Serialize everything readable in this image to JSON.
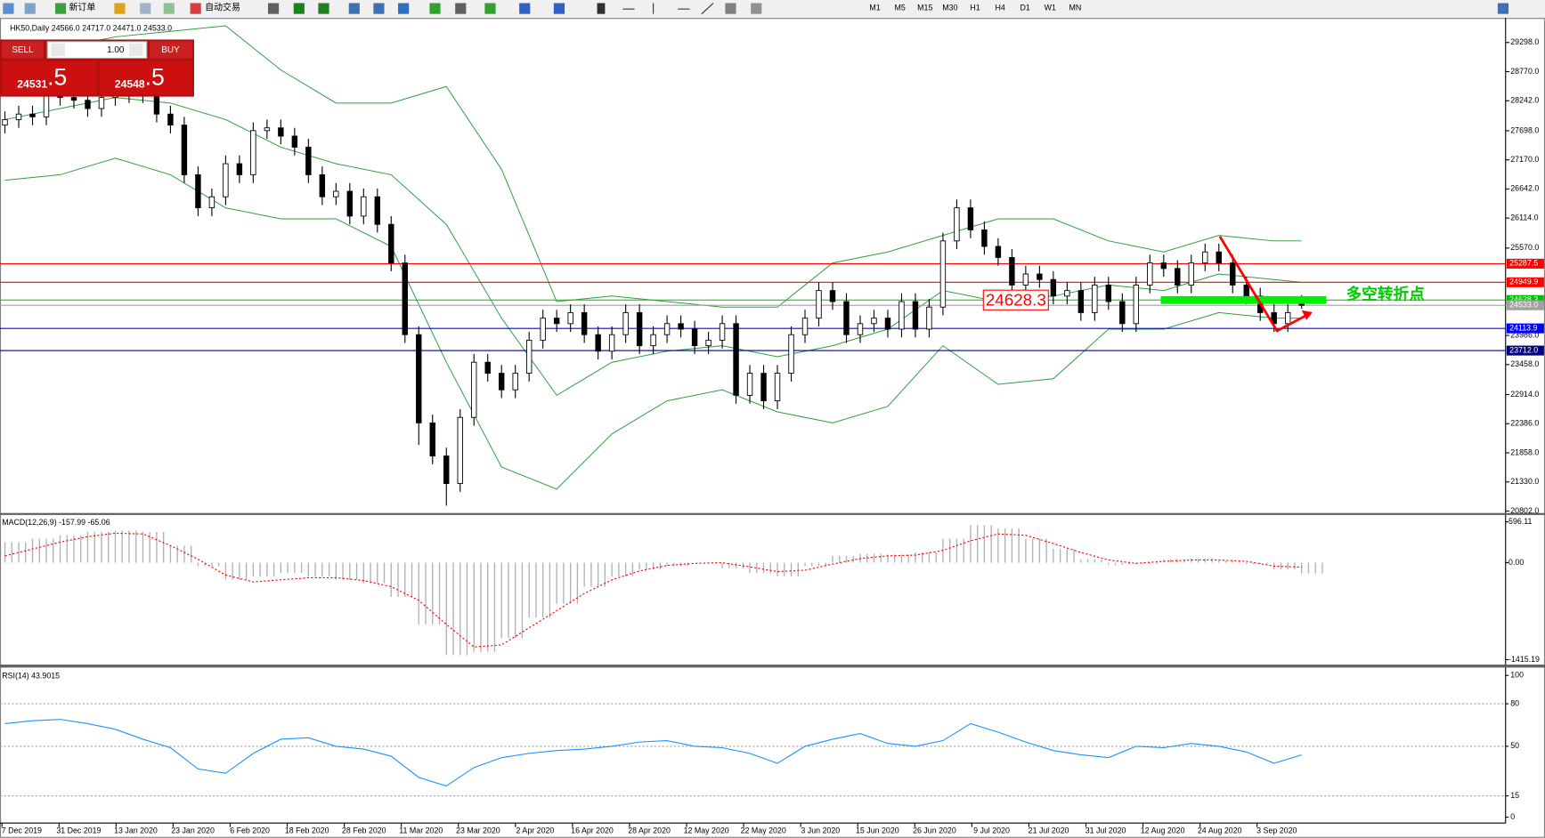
{
  "toolbar": {
    "new_order": "新订单",
    "auto_trade": "自动交易",
    "timeframes": [
      "M1",
      "M5",
      "M15",
      "M30",
      "H1",
      "H4",
      "D1",
      "W1",
      "MN"
    ]
  },
  "trade_panel": {
    "sell": "SELL",
    "buy": "BUY",
    "lots": "1.00",
    "sell_big": "24531",
    "sell_small": ".5",
    "buy_big": "24548",
    "buy_small": ".5"
  },
  "chart_data": [
    {
      "type": "candlestick",
      "title": "HK50,Daily  24566.0 24717.0 24471.0 24533.0",
      "open": [
        27800,
        27900,
        28000,
        27950,
        28350,
        28300,
        28250,
        28100,
        28300,
        28400,
        28350,
        28500,
        28000,
        27800,
        26900,
        26300,
        26500,
        27100,
        26900,
        27700,
        27750,
        27600,
        27400,
        26900,
        26500,
        26600,
        26150,
        26500,
        26000,
        25300,
        24000,
        22400,
        21800,
        21300,
        22500,
        23500,
        23300,
        23000,
        23300,
        23900,
        24300,
        24200,
        24400,
        24000,
        23700,
        24000,
        24400,
        23800,
        24000,
        24200,
        24100,
        23800,
        23900,
        24200,
        22900,
        23300,
        22800,
        23300,
        24000,
        24300,
        24800,
        24600,
        24000,
        24200,
        24300,
        24100,
        24600,
        24100,
        24500,
        25700,
        26300,
        25900,
        25600,
        25400,
        24900,
        25100,
        25000,
        24700,
        24800,
        24400,
        24900,
        24600,
        24200,
        24900,
        25300,
        25200,
        24900,
        25300,
        25500,
        25300,
        24900,
        24700,
        24400,
        24200,
        24566
      ],
      "high": [
        28050,
        28150,
        28150,
        28500,
        28500,
        28450,
        28400,
        28450,
        28550,
        28550,
        28650,
        28650,
        28150,
        27950,
        27050,
        26650,
        27250,
        27250,
        27850,
        27900,
        27900,
        27750,
        27550,
        27050,
        26750,
        26750,
        26650,
        26650,
        26150,
        25450,
        24150,
        22550,
        21950,
        22650,
        23650,
        23650,
        23450,
        23450,
        24050,
        24450,
        24450,
        24550,
        24550,
        24150,
        24150,
        24550,
        24550,
        24150,
        24350,
        24350,
        24250,
        24050,
        24350,
        24350,
        23450,
        23450,
        23450,
        24150,
        24450,
        24950,
        24950,
        24750,
        24350,
        24450,
        24450,
        24750,
        24750,
        24650,
        25850,
        26450,
        26450,
        26050,
        25750,
        25550,
        25250,
        25250,
        25150,
        24950,
        24950,
        25050,
        25050,
        24750,
        25050,
        25450,
        25450,
        25350,
        25450,
        25650,
        25650,
        25450,
        25050,
        24850,
        24550,
        24550,
        24717
      ],
      "low": [
        27650,
        27750,
        27800,
        27800,
        28150,
        28100,
        27950,
        27950,
        28150,
        28200,
        28200,
        27850,
        27650,
        26750,
        26150,
        26150,
        26350,
        26750,
        26750,
        27550,
        27450,
        27250,
        26750,
        26350,
        26350,
        26000,
        26000,
        25850,
        25150,
        23850,
        22000,
        21650,
        20900,
        21150,
        22350,
        23150,
        22850,
        22850,
        23150,
        23750,
        24050,
        24050,
        23850,
        23550,
        23550,
        23850,
        23650,
        23650,
        23850,
        23950,
        23650,
        23650,
        23750,
        22750,
        22750,
        22650,
        22650,
        23150,
        23850,
        24150,
        24450,
        23850,
        23850,
        24050,
        23950,
        23950,
        23950,
        23950,
        24350,
        25550,
        25750,
        25450,
        25250,
        24750,
        24750,
        24850,
        24550,
        24550,
        24250,
        24250,
        24450,
        24050,
        24050,
        24750,
        25050,
        24750,
        24750,
        25150,
        25150,
        24750,
        24550,
        24250,
        24050,
        24050,
        24471
      ],
      "close": [
        27900,
        28000,
        27950,
        28350,
        28300,
        28250,
        28100,
        28300,
        28400,
        28350,
        28500,
        28000,
        27800,
        26900,
        26300,
        26500,
        27100,
        26900,
        27700,
        27750,
        27600,
        27400,
        26900,
        26500,
        26600,
        26150,
        26500,
        26000,
        25300,
        24000,
        22400,
        21800,
        21300,
        22500,
        23500,
        23300,
        23000,
        23300,
        23900,
        24300,
        24200,
        24400,
        24000,
        23700,
        24000,
        24400,
        23800,
        24000,
        24200,
        24100,
        23800,
        23900,
        24200,
        22900,
        23300,
        22800,
        23300,
        24000,
        24300,
        24800,
        24600,
        24000,
        24200,
        24300,
        24100,
        24600,
        24100,
        24500,
        25700,
        26300,
        25900,
        25600,
        25400,
        24900,
        25100,
        25000,
        24700,
        24800,
        24400,
        24900,
        24600,
        24200,
        24900,
        25300,
        25200,
        24900,
        25300,
        25500,
        25300,
        24900,
        24700,
        24400,
        24200,
        24400,
        24533
      ],
      "bands": {
        "color": "#2e9e3e",
        "upper": [
          28900,
          29200,
          29400,
          29500,
          29600,
          28800,
          28200,
          28200,
          28500,
          27000,
          24600,
          24700,
          24600,
          24500,
          24500,
          25300,
          25500,
          25800,
          26100,
          26100,
          25700,
          25500,
          25800,
          25700,
          25700
        ],
        "middle": [
          27900,
          28100,
          28300,
          28200,
          27900,
          27400,
          27100,
          26900,
          26000,
          24300,
          22900,
          23500,
          23700,
          23800,
          23600,
          23800,
          24100,
          24800,
          24600,
          24700,
          24900,
          24800,
          25100,
          25000,
          24950
        ],
        "lower": [
          26800,
          26900,
          27200,
          26900,
          26300,
          26100,
          26100,
          25600,
          23500,
          21600,
          21200,
          22200,
          22800,
          23000,
          22600,
          22400,
          22700,
          23800,
          23100,
          23200,
          24100,
          24100,
          24400,
          24300,
          24300
        ]
      },
      "ylim": [
        20802,
        29298
      ],
      "yticks": [
        {
          "value": 29298,
          "label": "29298.0"
        },
        {
          "value": 28770,
          "label": "28770.0"
        },
        {
          "value": 28242,
          "label": "28242.0"
        },
        {
          "value": 27698,
          "label": "27698.0"
        },
        {
          "value": 27170,
          "label": "27170.0"
        },
        {
          "value": 26642,
          "label": "26642.0"
        },
        {
          "value": 26114,
          "label": "26114.0"
        },
        {
          "value": 25570,
          "label": "25570.0"
        },
        {
          "value": 23986,
          "label": "23986.0"
        },
        {
          "value": 23458,
          "label": "23458.0"
        },
        {
          "value": 22914,
          "label": "22914.0"
        },
        {
          "value": 22386,
          "label": "22386.0"
        },
        {
          "value": 21858,
          "label": "21858.0"
        },
        {
          "value": 21330,
          "label": "21330.0"
        },
        {
          "value": 20802,
          "label": "20802.0"
        }
      ],
      "levels": [
        {
          "value": 25287.5,
          "color": "#ff0000"
        },
        {
          "value": 24949.9,
          "color": "#ff0000"
        },
        {
          "value": 24628.3,
          "color": "#00c000"
        },
        {
          "value": 24533,
          "label": "24533.0",
          "color": "#a0a0a0"
        },
        {
          "value": 24113.9,
          "color": "#0000ff"
        },
        {
          "value": 23712,
          "label": "23712.0",
          "color": "#000080"
        }
      ],
      "date_labels": [
        "7 Dec 2019",
        "31 Dec 2019",
        "13 Jan 2020",
        "23 Jan 2020",
        "6 Feb 2020",
        "18 Feb 2020",
        "28 Feb 2020",
        "11 Mar 2020",
        "23 Mar 2020",
        "2 Apr 2020",
        "16 Apr 2020",
        "28 Apr 2020",
        "12 May 2020",
        "22 May 2020",
        "3 Jun 2020",
        "15 Jun 2020",
        "26 Jun 2020",
        "9 Jul 2020",
        "21 Jul 2020",
        "31 Jul 2020",
        "12 Aug 2020",
        "24 Aug 2020",
        "3 Sep 2020"
      ],
      "annotations": {
        "level_box": "24628.3",
        "note": "多空转折点"
      }
    },
    {
      "type": "macd",
      "title": "MACD(12,26,9) -157.99 -65.06",
      "histogram": [
        300,
        350,
        400,
        450,
        470,
        450,
        250,
        -50,
        -250,
        -200,
        -150,
        -200,
        -250,
        -300,
        -500,
        -900,
        -1350,
        -1300,
        -1100,
        -800,
        -600,
        -350,
        -200,
        -100,
        -50,
        0,
        -80,
        -150,
        -200,
        -50,
        100,
        130,
        120,
        150,
        350,
        550,
        500,
        350,
        200,
        50,
        -30,
        -20,
        50,
        60,
        30,
        -20,
        -100,
        -158
      ],
      "signal": [
        100,
        200,
        300,
        380,
        430,
        420,
        250,
        50,
        -180,
        -280,
        -250,
        -220,
        -220,
        -260,
        -350,
        -550,
        -900,
        -1230,
        -1200,
        -950,
        -700,
        -450,
        -250,
        -120,
        -40,
        -10,
        0,
        -60,
        -130,
        -110,
        -20,
        60,
        100,
        110,
        180,
        320,
        420,
        400,
        280,
        150,
        40,
        -10,
        20,
        40,
        40,
        20,
        -50,
        -65
      ],
      "ylim": [
        -1415.19,
        596.11
      ],
      "yticks": [
        596.11,
        {
          "value": 0,
          "label": "0.00"
        },
        -1415.19
      ]
    },
    {
      "type": "rsi",
      "title": "RSI(14) 43.9015",
      "color": "#1e90ff",
      "values": [
        66,
        68,
        69,
        66,
        62,
        55,
        49,
        34,
        31,
        45,
        55,
        56,
        50,
        48,
        43,
        28,
        22,
        35,
        42,
        45,
        47,
        48,
        50,
        53,
        54,
        50,
        49,
        45,
        38,
        50,
        55,
        59,
        52,
        50,
        54,
        66,
        60,
        53,
        47,
        44,
        42,
        50,
        49,
        52,
        50,
        46,
        38,
        43.9
      ],
      "ylim": [
        0,
        100
      ],
      "yticks": [
        100,
        80,
        50,
        15,
        0
      ]
    }
  ]
}
